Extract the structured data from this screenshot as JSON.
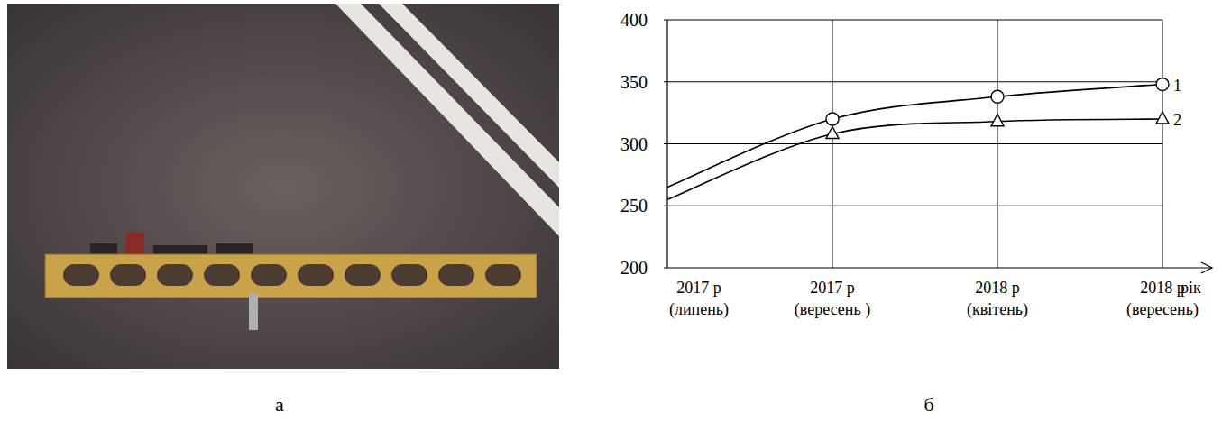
{
  "panel_labels": [
    "а",
    "б"
  ],
  "chart_data": {
    "type": "line",
    "x_label": "рік",
    "categories": [
      "2017 р\n(липень)",
      "2017 р\n(вересень )",
      "2018 р\n(квітень)",
      "2018 р\n(вересень)"
    ],
    "series": [
      {
        "name": "1",
        "color": "#000000",
        "marker": "circle",
        "values": [
          265,
          320,
          338,
          348
        ]
      },
      {
        "name": "2",
        "color": "#000000",
        "marker": "triangle",
        "values": [
          255,
          308,
          318,
          320
        ]
      }
    ],
    "ylim": [
      200,
      400
    ],
    "yticks": [
      200,
      250,
      300,
      350,
      400
    ],
    "grid": true
  }
}
